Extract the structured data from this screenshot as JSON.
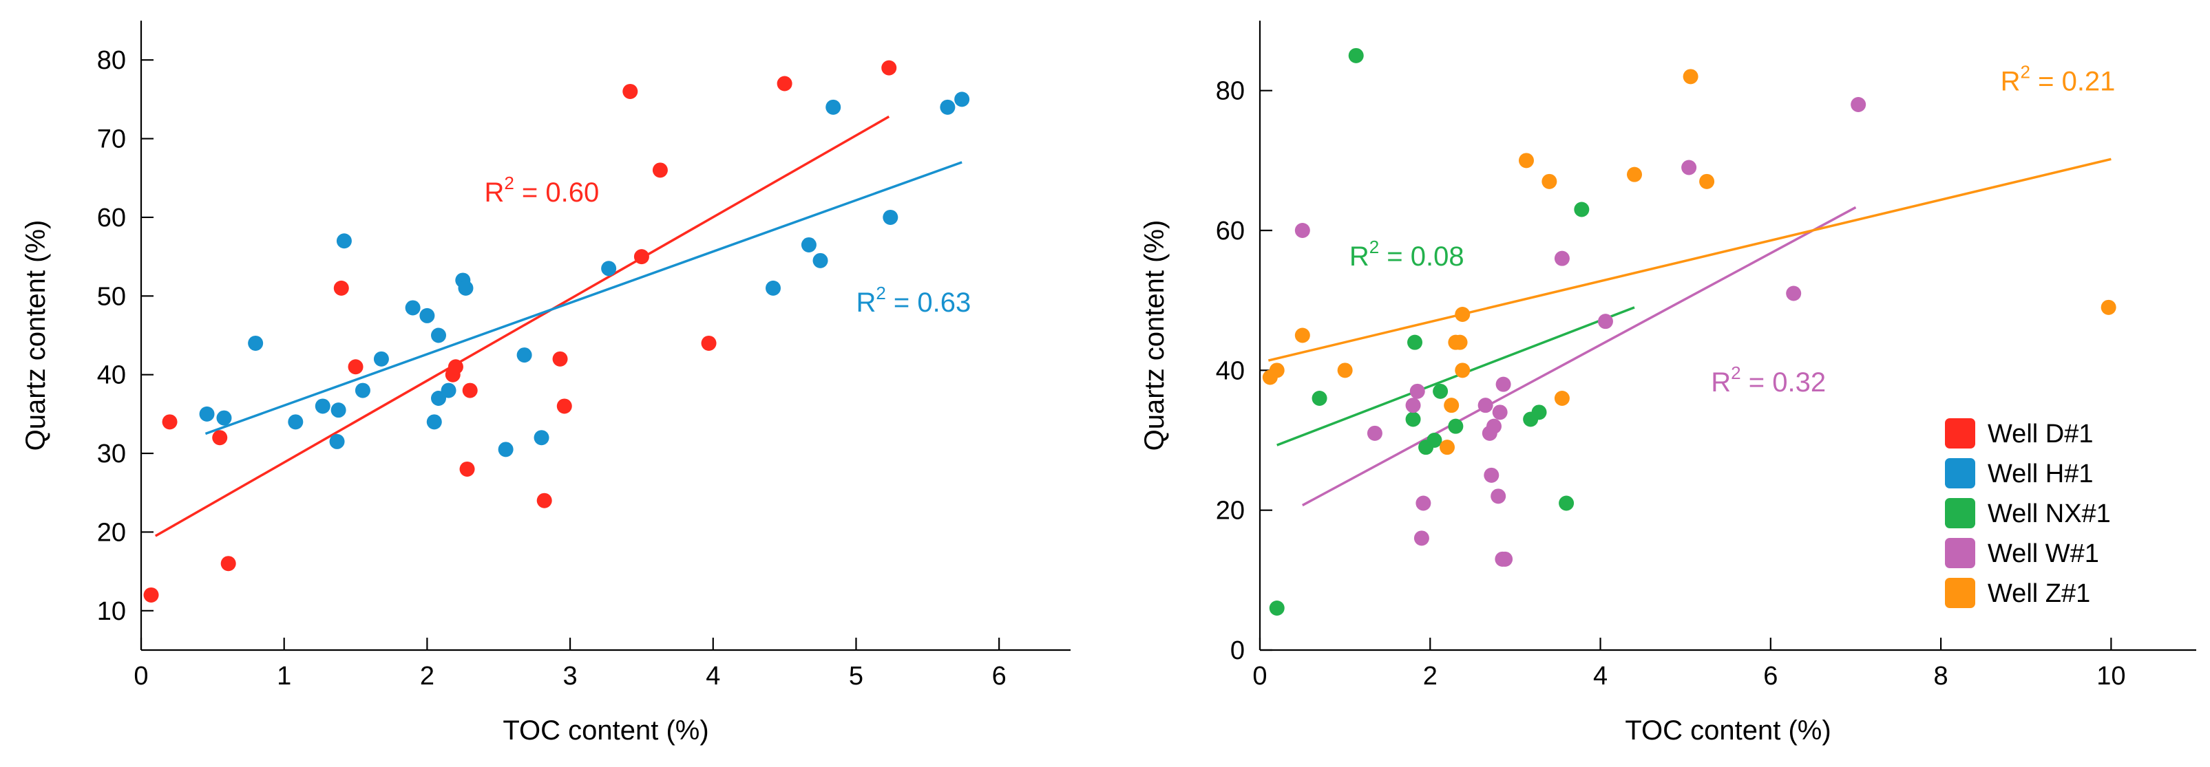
{
  "colors": {
    "D#1": "#ff2a1f",
    "H#1": "#1791cf",
    "NX#1": "#22b14c",
    "W#1": "#c266b5",
    "Z#1": "#ff9410"
  },
  "chart_data": [
    {
      "type": "scatter",
      "xlabel": "TOC content (%)",
      "ylabel": "Quartz content (%)",
      "xlim": [
        0,
        6.5
      ],
      "ylim": [
        5,
        85
      ],
      "xticks": [
        0,
        1,
        2,
        3,
        4,
        5,
        6
      ],
      "yticks": [
        10,
        20,
        30,
        40,
        50,
        60,
        70,
        80
      ],
      "series": [
        {
          "name": "Well D#1",
          "key": "D#1",
          "points": [
            [
              0.07,
              12
            ],
            [
              0.2,
              34
            ],
            [
              0.55,
              32
            ],
            [
              0.61,
              16
            ],
            [
              1.4,
              51
            ],
            [
              1.5,
              41
            ],
            [
              2.18,
              40
            ],
            [
              2.2,
              41
            ],
            [
              2.28,
              28
            ],
            [
              2.3,
              38
            ],
            [
              2.82,
              24
            ],
            [
              2.93,
              42
            ],
            [
              2.96,
              36
            ],
            [
              3.42,
              76
            ],
            [
              3.5,
              55
            ],
            [
              3.63,
              66
            ],
            [
              3.97,
              44
            ],
            [
              4.5,
              77
            ],
            [
              5.23,
              79
            ]
          ],
          "trend": [
            [
              0.1,
              19.5
            ],
            [
              5.23,
              72.8
            ]
          ],
          "r2_prefix": "R",
          "r2_sup": "2",
          "r2_value": " = 0.60",
          "r2_pos": [
            2.4,
            62
          ]
        },
        {
          "name": "Well H#1",
          "key": "H#1",
          "points": [
            [
              0.46,
              35
            ],
            [
              0.58,
              34.5
            ],
            [
              0.8,
              44
            ],
            [
              1.08,
              34
            ],
            [
              1.27,
              36
            ],
            [
              1.37,
              31.5
            ],
            [
              1.38,
              35.5
            ],
            [
              1.42,
              57
            ],
            [
              1.55,
              38
            ],
            [
              1.68,
              42
            ],
            [
              1.9,
              48.5
            ],
            [
              2.0,
              47.5
            ],
            [
              2.05,
              34
            ],
            [
              2.08,
              37
            ],
            [
              2.08,
              45
            ],
            [
              2.15,
              38
            ],
            [
              2.25,
              52
            ],
            [
              2.27,
              51
            ],
            [
              2.55,
              30.5
            ],
            [
              2.68,
              42.5
            ],
            [
              2.8,
              32
            ],
            [
              3.27,
              53.5
            ],
            [
              4.42,
              51
            ],
            [
              4.67,
              56.5
            ],
            [
              4.75,
              54.5
            ],
            [
              4.84,
              74
            ],
            [
              5.24,
              60
            ],
            [
              5.64,
              74
            ],
            [
              5.74,
              75
            ]
          ],
          "trend": [
            [
              0.45,
              32.5
            ],
            [
              5.74,
              67
            ]
          ],
          "r2_prefix": "R",
          "r2_sup": "2",
          "r2_value": " = 0.63",
          "r2_pos": [
            5.0,
            48
          ]
        }
      ]
    },
    {
      "type": "scatter",
      "xlabel": "TOC content (%)",
      "ylabel": "Quartz content (%)",
      "xlim": [
        0,
        11
      ],
      "ylim": [
        0,
        90
      ],
      "xticks": [
        0,
        2,
        4,
        6,
        8,
        10
      ],
      "yticks": [
        0,
        20,
        40,
        60,
        80
      ],
      "series": [
        {
          "name": "Well D#1",
          "key": "D#1",
          "points": [],
          "trend": null
        },
        {
          "name": "Well H#1",
          "key": "H#1",
          "points": [],
          "trend": null
        },
        {
          "name": "Well NX#1",
          "key": "NX#1",
          "points": [
            [
              0.2,
              6
            ],
            [
              0.7,
              36
            ],
            [
              1.13,
              85
            ],
            [
              1.8,
              33
            ],
            [
              1.82,
              44
            ],
            [
              1.95,
              29
            ],
            [
              2.05,
              30
            ],
            [
              2.12,
              37
            ],
            [
              2.3,
              32
            ],
            [
              3.18,
              33
            ],
            [
              3.28,
              34
            ],
            [
              3.6,
              21
            ],
            [
              3.78,
              63
            ]
          ],
          "trend": [
            [
              0.2,
              29.3
            ],
            [
              4.4,
              49
            ]
          ],
          "r2_prefix": "R",
          "r2_sup": "2",
          "r2_value": " = 0.08",
          "r2_pos": [
            1.05,
            55
          ]
        },
        {
          "name": "Well W#1",
          "key": "W#1",
          "points": [
            [
              0.5,
              60
            ],
            [
              1.35,
              31
            ],
            [
              1.8,
              35
            ],
            [
              1.85,
              37
            ],
            [
              1.9,
              16
            ],
            [
              1.92,
              21
            ],
            [
              2.65,
              35
            ],
            [
              2.7,
              31
            ],
            [
              2.72,
              25
            ],
            [
              2.75,
              32
            ],
            [
              2.8,
              22
            ],
            [
              2.82,
              34
            ],
            [
              2.85,
              13
            ],
            [
              2.88,
              13
            ],
            [
              2.86,
              38
            ],
            [
              3.55,
              56
            ],
            [
              4.06,
              47
            ],
            [
              5.04,
              69
            ],
            [
              6.27,
              51
            ],
            [
              7.03,
              78
            ]
          ],
          "trend": [
            [
              0.5,
              20.7
            ],
            [
              7.0,
              63.3
            ]
          ],
          "r2_prefix": "R",
          "r2_sup": "2",
          "r2_value": " = 0.32",
          "r2_pos": [
            5.3,
            37
          ]
        },
        {
          "name": "Well Z#1",
          "key": "Z#1",
          "points": [
            [
              0.12,
              39
            ],
            [
              0.2,
              40
            ],
            [
              0.5,
              45
            ],
            [
              1.0,
              40
            ],
            [
              2.2,
              29
            ],
            [
              2.25,
              35
            ],
            [
              2.3,
              44
            ],
            [
              2.35,
              44
            ],
            [
              2.38,
              40
            ],
            [
              2.38,
              48
            ],
            [
              3.13,
              70
            ],
            [
              3.4,
              67
            ],
            [
              3.55,
              36
            ],
            [
              4.4,
              68
            ],
            [
              5.06,
              82
            ],
            [
              5.25,
              67
            ],
            [
              9.97,
              49
            ]
          ],
          "trend": [
            [
              0.1,
              41.4
            ],
            [
              10.0,
              70.2
            ]
          ],
          "r2_prefix": "R",
          "r2_sup": "2",
          "r2_value": " = 0.21",
          "r2_pos": [
            8.7,
            80
          ]
        }
      ]
    }
  ]
}
